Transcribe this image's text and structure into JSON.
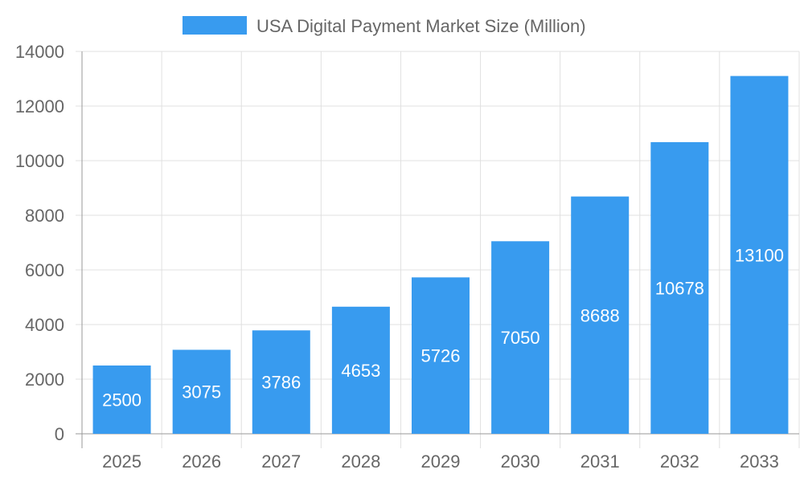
{
  "chart_data": {
    "type": "bar",
    "title": "",
    "legend": {
      "label": "USA Digital Payment Market Size (Million)",
      "placement": "top"
    },
    "categories": [
      "2025",
      "2026",
      "2027",
      "2028",
      "2029",
      "2030",
      "2031",
      "2032",
      "2033"
    ],
    "series": [
      {
        "name": "USA Digital Payment Market Size (Million)",
        "values": [
          2500,
          3075,
          3786,
          4653,
          5726,
          7050,
          8688,
          10678,
          13100
        ],
        "color": "#389bef"
      }
    ],
    "xlabel": "",
    "ylabel": "",
    "ylim": [
      0,
      14000
    ],
    "yticks": [
      0,
      2000,
      4000,
      6000,
      8000,
      10000,
      12000,
      14000
    ],
    "grid": true,
    "data_labels": true
  }
}
